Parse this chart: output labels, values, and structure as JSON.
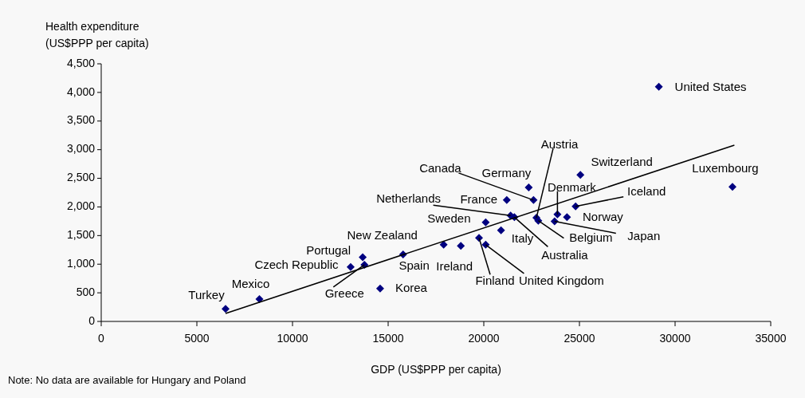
{
  "chart_data": {
    "type": "scatter",
    "xlabel": "GDP (US$PPP per capita)",
    "ylabel": "Health expenditure\n(US$PPP per capita)",
    "xlim": [
      0,
      35000
    ],
    "xticks": [
      0,
      5000,
      10000,
      15000,
      20000,
      25000,
      30000,
      35000
    ],
    "ylim": [
      0,
      4500
    ],
    "yticks": [
      0,
      500,
      {
        "value": 1000,
        "label": "1,000"
      },
      {
        "value": 1500,
        "label": "1,500"
      },
      {
        "value": 2000,
        "label": "2,000"
      },
      {
        "value": 2500,
        "label": "2,500"
      },
      {
        "value": 3000,
        "label": "3,000"
      },
      {
        "value": 3500,
        "label": "3,500"
      },
      {
        "value": 4000,
        "label": "4,000"
      },
      {
        "value": 4500,
        "label": "4,500"
      }
    ],
    "series": [
      {
        "marker": "diamond",
        "color": "#000080",
        "x": [
          6500,
          8270,
          13040,
          13670,
          13760,
          14580,
          15780,
          17900,
          18800,
          19750,
          20100,
          20100,
          20900,
          21200,
          22350,
          22600,
          21400,
          21600,
          22750,
          22850,
          23850,
          23700,
          24350,
          24800,
          25050,
          29150,
          33000
        ],
        "values": [
          220,
          390,
          950,
          1120,
          990,
          575,
          1170,
          1340,
          1320,
          1460,
          1340,
          1730,
          1590,
          2120,
          2340,
          2120,
          1850,
          1820,
          1810,
          1760,
          1870,
          1750,
          1820,
          2010,
          2560,
          4100,
          2350
        ]
      },
      {
        "type": "line",
        "color": "#000000",
        "x": [
          6500,
          33100
        ],
        "values": [
          140,
          3080
        ]
      }
    ],
    "annotations": [
      {
        "text": "Turkey",
        "x": 6500,
        "y": 220
      },
      {
        "text": "Mexico",
        "x": 8270,
        "y": 390
      },
      {
        "text": "Czech Republic",
        "x": 13040,
        "y": 950
      },
      {
        "text": "Portugal",
        "x": 13670,
        "y": 1120
      },
      {
        "text": "Greece",
        "x": 13760,
        "y": 990
      },
      {
        "text": "Korea",
        "x": 14580,
        "y": 575
      },
      {
        "text": "New Zealand",
        "x": 15780,
        "y": 1170
      },
      {
        "text": "Spain",
        "x": 17900,
        "y": 1340
      },
      {
        "text": "Ireland",
        "x": 18800,
        "y": 1320
      },
      {
        "text": "Finland",
        "x": 19750,
        "y": 1460
      },
      {
        "text": "United Kingdom",
        "x": 20100,
        "y": 1340
      },
      {
        "text": "Sweden",
        "x": 20100,
        "y": 1730
      },
      {
        "text": "Italy",
        "x": 20900,
        "y": 1590
      },
      {
        "text": "France",
        "x": 21200,
        "y": 2120
      },
      {
        "text": "Germany",
        "x": 22350,
        "y": 2340
      },
      {
        "text": "Canada",
        "x": 22600,
        "y": 2120
      },
      {
        "text": "Netherlands",
        "x": 21400,
        "y": 1850
      },
      {
        "text": "Australia",
        "x": 21600,
        "y": 1820
      },
      {
        "text": "Austria",
        "x": 22750,
        "y": 1810
      },
      {
        "text": "Belgium",
        "x": 22850,
        "y": 1760
      },
      {
        "text": "Denmark",
        "x": 23850,
        "y": 1870
      },
      {
        "text": "Japan",
        "x": 23700,
        "y": 1750
      },
      {
        "text": "Norway",
        "x": 24350,
        "y": 1820
      },
      {
        "text": "Iceland",
        "x": 24800,
        "y": 2010
      },
      {
        "text": "Switzerland",
        "x": 25050,
        "y": 2560
      },
      {
        "text": "United States",
        "x": 29150,
        "y": 4100
      },
      {
        "text": "Luxembourg",
        "x": 33000,
        "y": 2350
      },
      "Note: No data are available for Hungary and Poland"
    ]
  }
}
